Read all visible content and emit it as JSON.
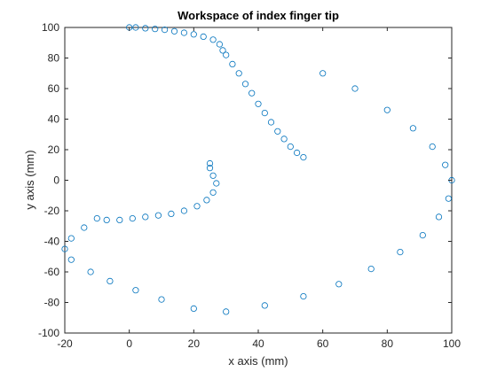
{
  "chart_data": {
    "type": "scatter",
    "title": "Workspace of index finger tip",
    "xlabel": "x axis (mm)",
    "ylabel": "y axis (mm)",
    "xlim": [
      -20,
      100
    ],
    "ylim": [
      -100,
      100
    ],
    "xticks": [
      -20,
      0,
      20,
      40,
      60,
      80,
      100
    ],
    "yticks": [
      -100,
      -80,
      -60,
      -40,
      -20,
      0,
      20,
      40,
      60,
      80,
      100
    ],
    "marker": "circle-open",
    "color": "#0072bd",
    "grid": false,
    "series": [
      {
        "points": [
          [
            0,
            100
          ],
          [
            2,
            100
          ],
          [
            5,
            99.5
          ],
          [
            8,
            99
          ],
          [
            11,
            98.5
          ],
          [
            14,
            97.5
          ],
          [
            17,
            96.5
          ],
          [
            20,
            95.5
          ],
          [
            23,
            94
          ],
          [
            26,
            92
          ],
          [
            28,
            89
          ],
          [
            29,
            85
          ],
          [
            -10,
            -25
          ],
          [
            -7,
            -26
          ],
          [
            -3,
            -26
          ],
          [
            1,
            -25
          ],
          [
            5,
            -24
          ],
          [
            9,
            -23
          ],
          [
            13,
            -22
          ],
          [
            17,
            -20
          ],
          [
            21,
            -17
          ],
          [
            24,
            -13
          ],
          [
            26,
            -8
          ],
          [
            27,
            -2
          ],
          [
            26,
            3
          ],
          [
            25,
            8
          ],
          [
            25,
            11
          ],
          [
            30,
            82
          ],
          [
            32,
            76
          ],
          [
            34,
            70
          ],
          [
            36,
            63
          ],
          [
            38,
            57
          ],
          [
            40,
            50
          ],
          [
            42,
            44
          ],
          [
            44,
            38
          ],
          [
            46,
            32
          ],
          [
            48,
            27
          ],
          [
            50,
            22
          ],
          [
            52,
            18
          ],
          [
            54,
            15
          ],
          [
            60,
            70
          ],
          [
            70,
            60
          ],
          [
            80,
            46
          ],
          [
            88,
            34
          ],
          [
            94,
            22
          ],
          [
            98,
            10
          ],
          [
            100,
            0
          ],
          [
            99,
            -12
          ],
          [
            96,
            -24
          ],
          [
            91,
            -36
          ],
          [
            84,
            -47
          ],
          [
            75,
            -58
          ],
          [
            65,
            -68
          ],
          [
            54,
            -76
          ],
          [
            42,
            -82
          ],
          [
            30,
            -86
          ],
          [
            20,
            -84
          ],
          [
            10,
            -78
          ],
          [
            2,
            -72
          ],
          [
            -6,
            -66
          ],
          [
            -12,
            -60
          ],
          [
            -18,
            -52
          ],
          [
            -20,
            -45
          ],
          [
            -18,
            -38
          ],
          [
            -14,
            -31
          ]
        ]
      }
    ]
  }
}
